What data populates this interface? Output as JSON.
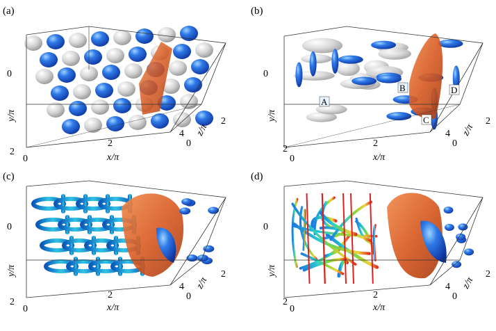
{
  "panels": [
    {
      "id": "a",
      "letter": "(a)",
      "y_top": "0",
      "y_bottom": "2",
      "x_ticks": [
        "0",
        "2"
      ],
      "z_ticks": [
        "4",
        "0"
      ],
      "z_far": "2",
      "xlabel": "x/π",
      "ylabel": "y/π",
      "zlabel": "z/π",
      "markers": []
    },
    {
      "id": "b",
      "letter": "(b)",
      "y_top": "0",
      "y_bottom": "2",
      "x_ticks": [
        "0",
        "2"
      ],
      "z_ticks": [
        "4",
        "0"
      ],
      "z_far": "2",
      "xlabel": "x/π",
      "ylabel": "y/π",
      "zlabel": "z/π",
      "markers": [
        "A",
        "B",
        "C",
        "D"
      ]
    },
    {
      "id": "c",
      "letter": "(c)",
      "y_top": "0",
      "y_bottom": "2",
      "x_ticks": [
        "0",
        "2"
      ],
      "z_ticks": [
        "4",
        "0"
      ],
      "z_far": "2",
      "xlabel": "x/π",
      "ylabel": "y/π",
      "zlabel": "z/π",
      "markers": []
    },
    {
      "id": "d",
      "letter": "(d)",
      "y_top": "0",
      "y_bottom": "2",
      "x_ticks": [
        "0",
        "2"
      ],
      "z_ticks": [
        "4",
        "0"
      ],
      "z_far": "2",
      "xlabel": "x/π",
      "ylabel": "y/π",
      "zlabel": "z/π",
      "markers": []
    }
  ],
  "colors": {
    "blue": "#1f5fd6",
    "light_blue": "#8fc7ff",
    "cyan": "#1fb0d0",
    "gray": "#c8c8c8",
    "orange": "#d8622a",
    "green": "#7cc63c",
    "red": "#e02020"
  }
}
